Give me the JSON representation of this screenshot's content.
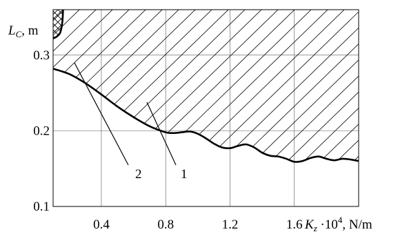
{
  "chart_data": {
    "type": "line",
    "title": "",
    "xlabel": {
      "main": "K",
      "subscript": "z",
      "factor": " ·10",
      "exponent": "4",
      "unit": ", N/m"
    },
    "ylabel": {
      "main": "L",
      "subscript": "C",
      "unit": ", m"
    },
    "xlim": [
      0.1,
      2.0
    ],
    "ylim": [
      0.1,
      0.36
    ],
    "x_ticks": [
      0.4,
      0.8,
      1.2,
      1.6
    ],
    "x_tick_labels": [
      "0.4",
      "0.8",
      "1.2",
      "1.6"
    ],
    "y_ticks": [
      0.1,
      0.2,
      0.3
    ],
    "y_tick_labels": [
      "0.1",
      "0.2",
      "0.3"
    ],
    "grid": true,
    "series": [
      {
        "x": [
          0.1,
          0.2,
          0.3,
          0.4,
          0.5,
          0.6,
          0.7,
          0.8,
          0.85,
          0.9,
          0.95,
          1.0,
          1.05,
          1.1,
          1.15,
          1.2,
          1.25,
          1.3,
          1.35,
          1.4,
          1.45,
          1.5,
          1.55,
          1.6,
          1.65,
          1.7,
          1.75,
          1.8,
          1.85,
          1.9,
          1.95,
          2.0
        ],
        "y": [
          0.282,
          0.275,
          0.263,
          0.248,
          0.232,
          0.218,
          0.206,
          0.198,
          0.197,
          0.198,
          0.199,
          0.196,
          0.19,
          0.183,
          0.178,
          0.177,
          0.18,
          0.182,
          0.178,
          0.171,
          0.167,
          0.166,
          0.163,
          0.159,
          0.16,
          0.164,
          0.166,
          0.163,
          0.161,
          0.163,
          0.162,
          0.16
        ]
      },
      {
        "x": [
          0.1,
          0.12,
          0.14,
          0.15,
          0.158,
          0.162
        ],
        "y": [
          0.322,
          0.324,
          0.328,
          0.334,
          0.345,
          0.36
        ]
      }
    ],
    "regions": [
      "hatched area above curve 1 (stable region)",
      "cross-hatched area above curve 2"
    ],
    "callouts": [
      {
        "label": "1",
        "x": 0.68,
        "y": 0.22
      },
      {
        "label": "2",
        "x": 0.72,
        "y": 0.25
      }
    ]
  }
}
